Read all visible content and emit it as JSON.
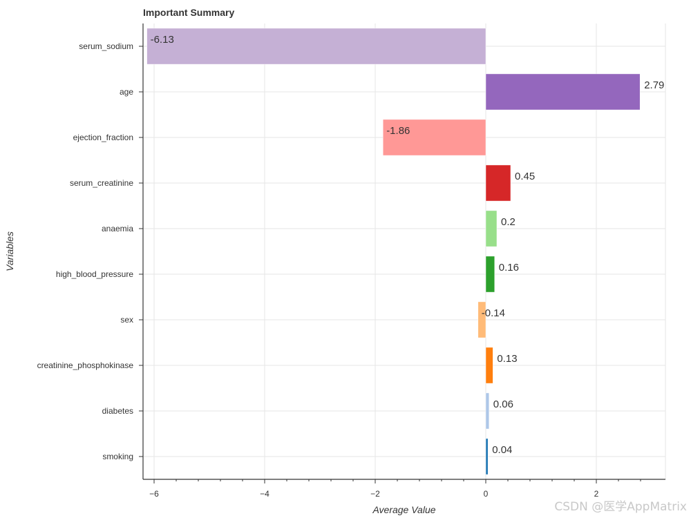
{
  "chart_data": {
    "type": "bar",
    "orientation": "horizontal",
    "title": "Important Summary",
    "xlabel": "Average Value",
    "ylabel": "Variables",
    "xlim": [
      -6.2,
      3.25
    ],
    "xticks": [
      -6,
      -4,
      -2,
      0,
      2
    ],
    "xtick_labels": [
      "−6",
      "−4",
      "−2",
      "0",
      "2"
    ],
    "grid": true,
    "categories": [
      "serum_sodium",
      "age",
      "ejection_fraction",
      "serum_creatinine",
      "anaemia",
      "high_blood_pressure",
      "sex",
      "creatinine_phosphokinase",
      "diabetes",
      "smoking"
    ],
    "values": [
      -6.13,
      2.79,
      -1.86,
      0.45,
      0.2,
      0.16,
      -0.14,
      0.13,
      0.06,
      0.04
    ],
    "labels": [
      "-6.13",
      "2.79",
      "-1.86",
      "0.45",
      "0.2",
      "0.16",
      "-0.14",
      "0.13",
      "0.06",
      "0.04"
    ],
    "colors": [
      "#c5b0d5",
      "#9467bd",
      "#ff9896",
      "#d62728",
      "#98df8a",
      "#2ca02c",
      "#ffbb78",
      "#ff7f0e",
      "#aec7e8",
      "#1f77b4"
    ]
  },
  "watermark": "CSDN @医学AppMatrix"
}
